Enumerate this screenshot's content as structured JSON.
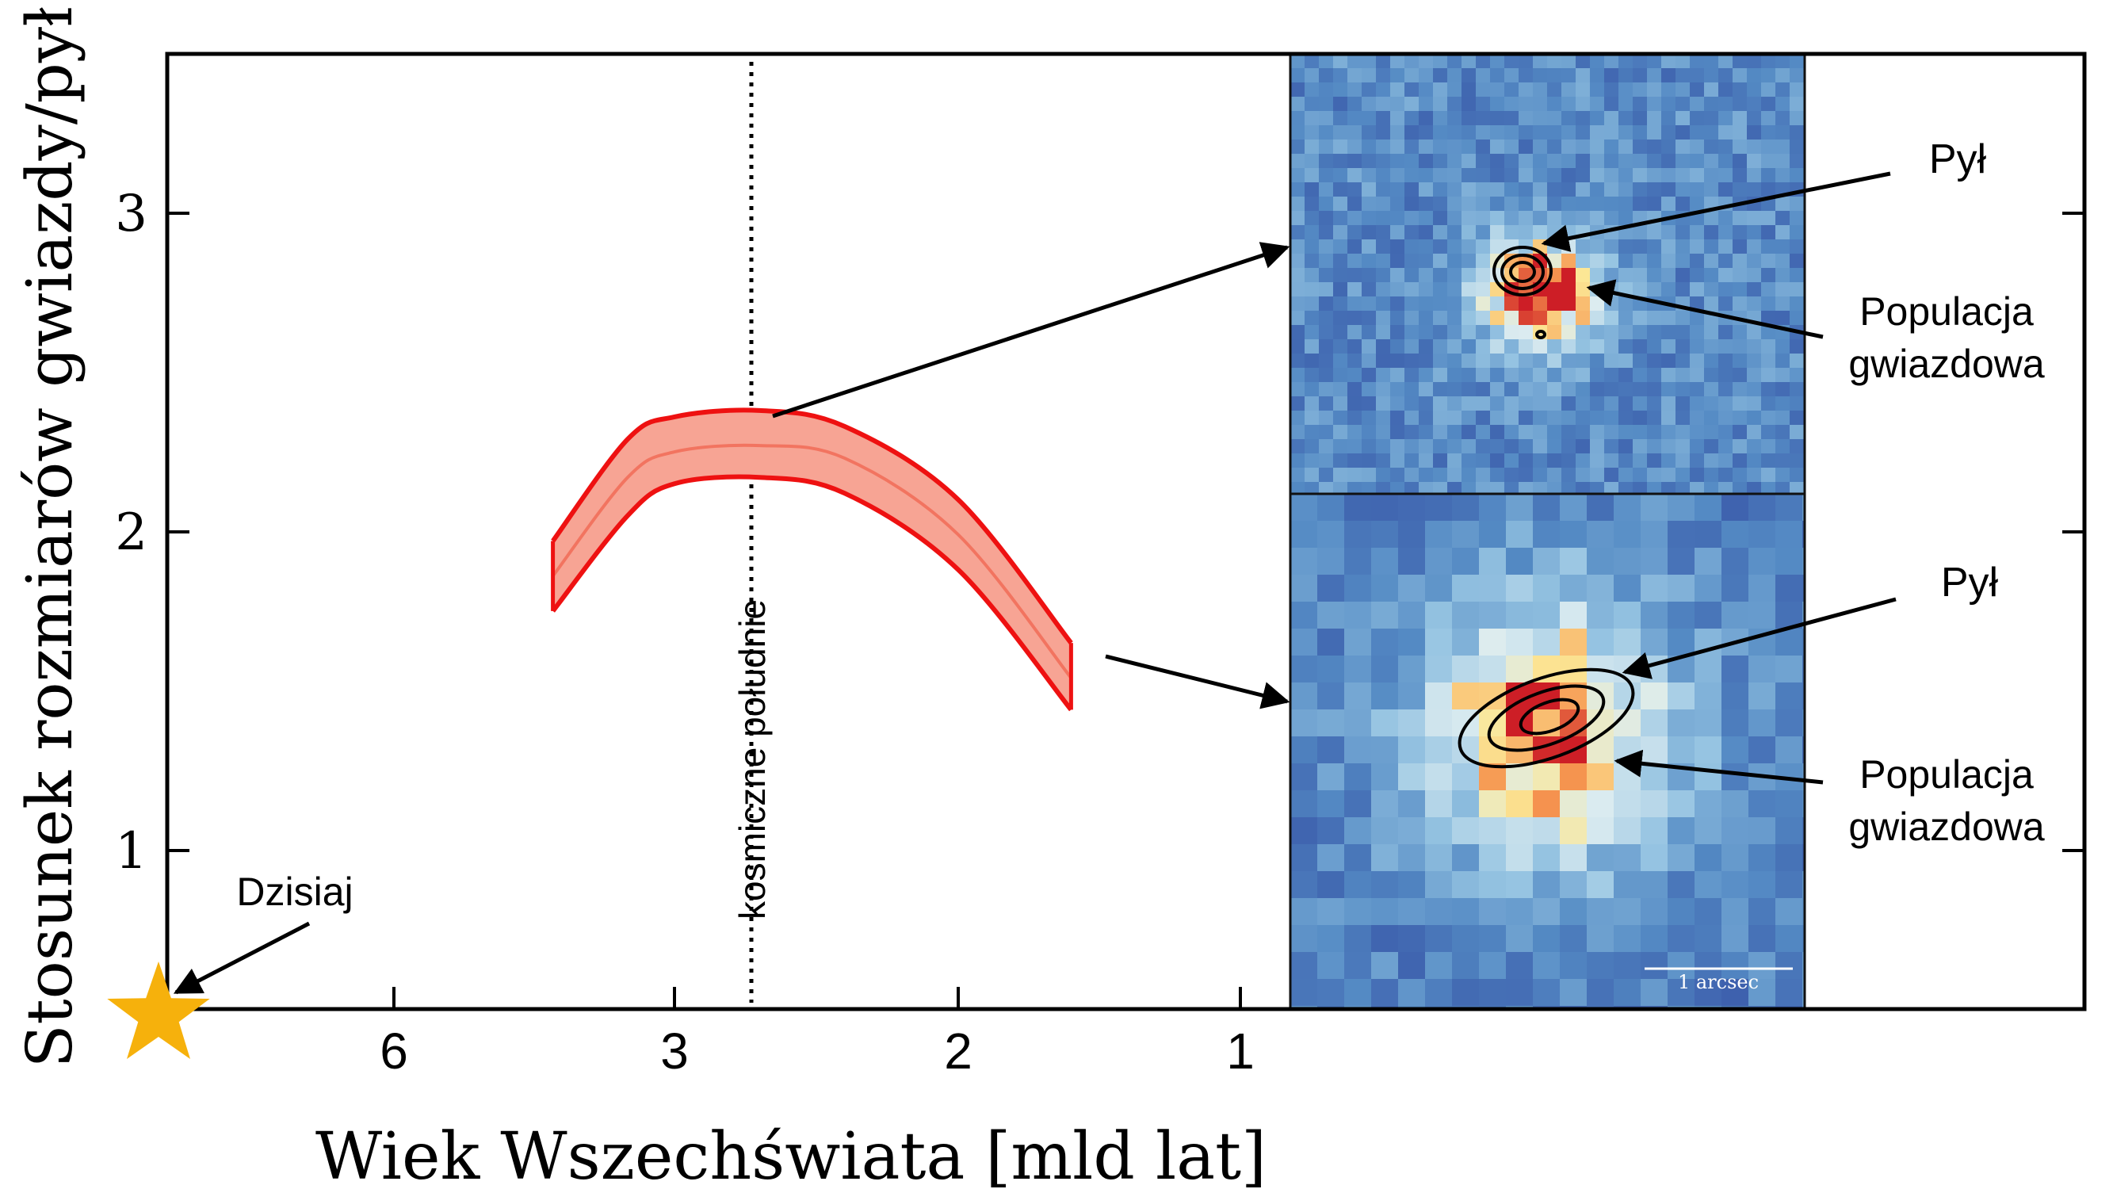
{
  "chart_data": {
    "type": "area",
    "xlabel": "Wiek Wszechświata [mld lat]",
    "ylabel": "Stosunek rozmiarów gwiazdy/pył",
    "x_ticks": [
      "6",
      "3",
      "2",
      "1"
    ],
    "y_ticks": [
      "1",
      "2",
      "3"
    ],
    "ylim": [
      0.5,
      3.5
    ],
    "grid": false,
    "series": [
      {
        "band": "ratio",
        "x": [
          4.3,
          3.5,
          3.0,
          2.7,
          2.4,
          2.0,
          1.6
        ],
        "center": [
          1.86,
          2.17,
          2.25,
          2.27,
          2.23,
          1.99,
          1.54
        ],
        "lower": [
          1.75,
          2.05,
          2.15,
          2.17,
          2.12,
          1.88,
          1.44
        ],
        "upper": [
          1.97,
          2.29,
          2.36,
          2.38,
          2.33,
          2.1,
          1.65
        ],
        "color": "#ee1111",
        "fill": "#f7a494"
      }
    ],
    "markers": [
      {
        "label": "Dzisiaj",
        "x": 13.8,
        "y": 0.5,
        "shape": "star",
        "color": "#f6b10c"
      }
    ],
    "annotations": {
      "vline_label": "kosmiczne południe",
      "vline_x": 2.7
    },
    "insets": [
      {
        "dust_label": "Pył",
        "stars_label": "Populacja gwiazdowa",
        "stars_label_lines": [
          "Populacja",
          "gwiazdowa"
        ]
      },
      {
        "dust_label": "Pył",
        "stars_label": "Populacja gwiazdowa",
        "stars_label_lines": [
          "Populacja",
          "gwiazdowa"
        ],
        "scalebar_label": "1 arcsec"
      }
    ]
  }
}
